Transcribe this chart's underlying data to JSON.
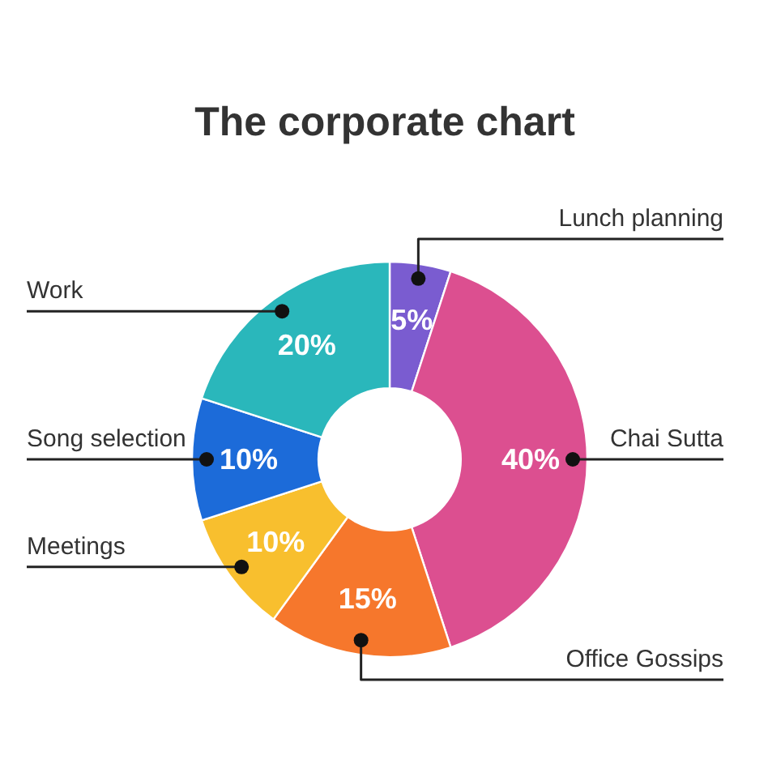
{
  "chart_data": {
    "type": "donut",
    "title": "The corporate chart",
    "categories": [
      "Lunch planning",
      "Chai Sutta",
      "Office Gossips",
      "Meetings",
      "Song selection",
      "Work"
    ],
    "values": [
      5,
      40,
      15,
      10,
      10,
      20
    ],
    "colors": [
      "#7a5cd0",
      "#dc4f90",
      "#f6772c",
      "#f8bf2e",
      "#1c6bd9",
      "#2ab7bb"
    ],
    "value_labels": [
      "5%",
      "40%",
      "15%",
      "10%",
      "10%",
      "20%"
    ]
  }
}
